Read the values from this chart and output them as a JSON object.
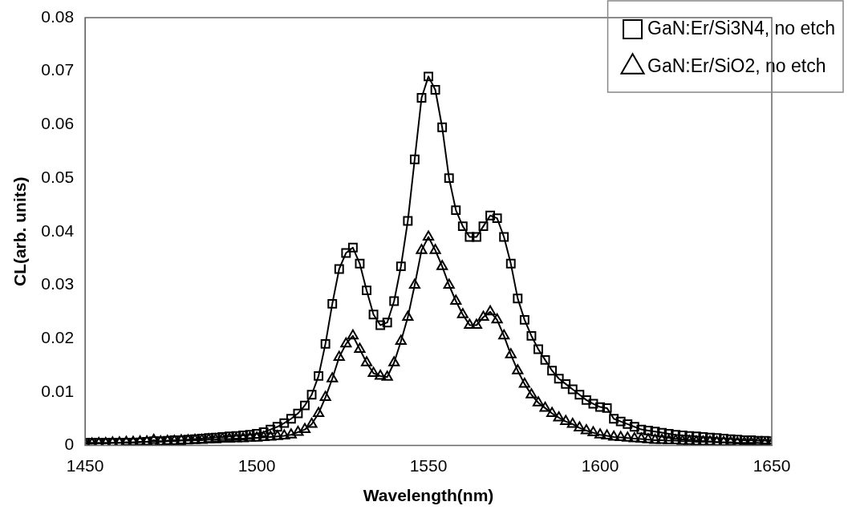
{
  "chart_data": {
    "type": "line",
    "xlabel": "Wavelength(nm)",
    "ylabel": "CL(arb. units)",
    "x": [
      1450,
      1452,
      1454,
      1456,
      1458,
      1460,
      1462,
      1464,
      1466,
      1468,
      1470,
      1472,
      1474,
      1476,
      1478,
      1480,
      1482,
      1484,
      1486,
      1488,
      1490,
      1492,
      1494,
      1496,
      1498,
      1500,
      1502,
      1504,
      1506,
      1508,
      1510,
      1512,
      1514,
      1516,
      1518,
      1520,
      1522,
      1524,
      1526,
      1528,
      1530,
      1532,
      1534,
      1536,
      1538,
      1540,
      1542,
      1544,
      1546,
      1548,
      1550,
      1552,
      1554,
      1556,
      1558,
      1560,
      1562,
      1564,
      1566,
      1568,
      1570,
      1572,
      1574,
      1576,
      1578,
      1580,
      1582,
      1584,
      1586,
      1588,
      1590,
      1592,
      1594,
      1596,
      1598,
      1600,
      1602,
      1604,
      1606,
      1608,
      1610,
      1612,
      1614,
      1616,
      1618,
      1620,
      1622,
      1624,
      1626,
      1628,
      1630,
      1632,
      1634,
      1636,
      1638,
      1640,
      1642,
      1644,
      1646,
      1648,
      1650
    ],
    "series": [
      {
        "name": "GaN:Er/Si3N4, no etch",
        "color": "#000000",
        "marker": "square",
        "values": [
          0.0005,
          0.0005,
          0.0005,
          0.0005,
          0.0005,
          0.0005,
          0.0005,
          0.0005,
          0.0006,
          0.0007,
          0.0008,
          0.0008,
          0.0009,
          0.001,
          0.001,
          0.0011,
          0.0012,
          0.0013,
          0.0014,
          0.0015,
          0.0016,
          0.0017,
          0.0018,
          0.0019,
          0.002,
          0.0022,
          0.0025,
          0.003,
          0.0035,
          0.0042,
          0.005,
          0.006,
          0.0075,
          0.0095,
          0.013,
          0.019,
          0.0265,
          0.033,
          0.036,
          0.037,
          0.034,
          0.029,
          0.0245,
          0.0225,
          0.023,
          0.027,
          0.0335,
          0.042,
          0.0535,
          0.065,
          0.069,
          0.0665,
          0.0595,
          0.05,
          0.044,
          0.041,
          0.039,
          0.039,
          0.041,
          0.043,
          0.0425,
          0.039,
          0.034,
          0.0275,
          0.0235,
          0.0205,
          0.018,
          0.016,
          0.014,
          0.0125,
          0.0115,
          0.0105,
          0.0095,
          0.0085,
          0.0078,
          0.0072,
          0.007,
          0.005,
          0.0045,
          0.004,
          0.0035,
          0.003,
          0.0028,
          0.0026,
          0.0024,
          0.0022,
          0.002,
          0.0019,
          0.0018,
          0.0017,
          0.0016,
          0.0015,
          0.0014,
          0.0013,
          0.0012,
          0.0011,
          0.001,
          0.001,
          0.0009,
          0.0009,
          0.0008
        ]
      },
      {
        "name": "GaN:Er/SiO2, no etch",
        "color": "#000000",
        "marker": "triangle",
        "values": [
          0.0003,
          0.0003,
          0.0004,
          0.0004,
          0.0005,
          0.0005,
          0.0006,
          0.0006,
          0.0007,
          0.0007,
          0.001,
          0.0007,
          0.0008,
          0.0008,
          0.0009,
          0.0009,
          0.001,
          0.001,
          0.0011,
          0.0011,
          0.0012,
          0.0012,
          0.0013,
          0.0013,
          0.0014,
          0.0014,
          0.0015,
          0.0016,
          0.0017,
          0.0018,
          0.002,
          0.0025,
          0.003,
          0.004,
          0.006,
          0.009,
          0.0125,
          0.0165,
          0.019,
          0.0205,
          0.018,
          0.0155,
          0.0135,
          0.013,
          0.0128,
          0.0155,
          0.0195,
          0.024,
          0.03,
          0.0365,
          0.039,
          0.0365,
          0.0335,
          0.03,
          0.027,
          0.0245,
          0.0225,
          0.0225,
          0.024,
          0.025,
          0.0235,
          0.0205,
          0.017,
          0.014,
          0.0115,
          0.0095,
          0.008,
          0.007,
          0.006,
          0.0052,
          0.0045,
          0.004,
          0.0033,
          0.0028,
          0.0024,
          0.002,
          0.0018,
          0.0016,
          0.0015,
          0.0014,
          0.0013,
          0.0012,
          0.0011,
          0.001,
          0.001,
          0.0009,
          0.0009,
          0.0008,
          0.0008,
          0.0007,
          0.0007,
          0.0007,
          0.0006,
          0.0006,
          0.0006,
          0.0005,
          0.0005,
          0.0005,
          0.0005,
          0.0004,
          0.0004
        ]
      }
    ],
    "xlim": [
      1450,
      1650
    ],
    "xticks": [
      1450,
      1500,
      1550,
      1600,
      1650
    ],
    "ylim": [
      0,
      0.08
    ],
    "yticks": [
      0,
      0.01,
      0.02,
      0.03,
      0.04,
      0.05,
      0.06,
      0.07,
      0.08
    ],
    "grid": false,
    "legend": "top right",
    "line_style": "solid"
  }
}
